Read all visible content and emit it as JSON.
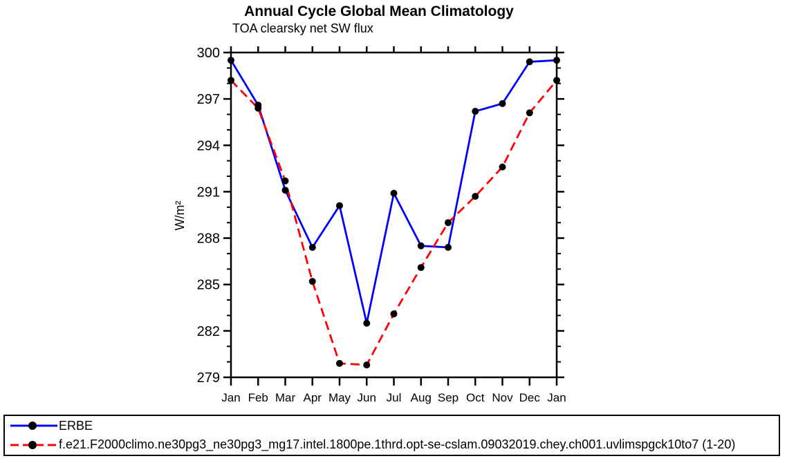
{
  "chart_data": {
    "type": "line",
    "title": "Annual Cycle Global Mean Climatology",
    "subtitle": "TOA clearsky net SW flux",
    "ylabel": "W/m²",
    "xlabel": "",
    "categories": [
      "Jan",
      "Feb",
      "Mar",
      "Apr",
      "May",
      "Jun",
      "Jul",
      "Aug",
      "Sep",
      "Oct",
      "Nov",
      "Dec",
      "Jan"
    ],
    "ylim": [
      279,
      300
    ],
    "y_major_ticks": [
      279,
      282,
      285,
      288,
      291,
      294,
      297,
      300
    ],
    "y_minor_tick_step": 1,
    "grid": false,
    "legend_position": "bottom-box",
    "frame_color": "#000000",
    "background_color": "#ffffff",
    "series": [
      {
        "name": "ERBE",
        "color": "#0000ff",
        "line_style": "solid",
        "marker": "filled-circle",
        "marker_color": "#000000",
        "values": [
          299.5,
          296.6,
          291.1,
          287.4,
          290.1,
          282.5,
          290.9,
          287.5,
          287.4,
          296.2,
          296.7,
          299.4,
          299.5
        ]
      },
      {
        "name": "f.e21.F2000climo.ne30pg3_ne30pg3_mg17.intel.1800pe.1thrd.opt-se-cslam.09032019.chey.ch001.uvlimspgck10to7 (1-20)",
        "color": "#ff0000",
        "line_style": "dashed",
        "marker": "filled-circle",
        "marker_color": "#000000",
        "values": [
          298.2,
          296.4,
          291.7,
          285.2,
          279.9,
          279.8,
          283.1,
          286.1,
          289.0,
          290.7,
          292.6,
          296.1,
          298.2
        ]
      }
    ]
  }
}
